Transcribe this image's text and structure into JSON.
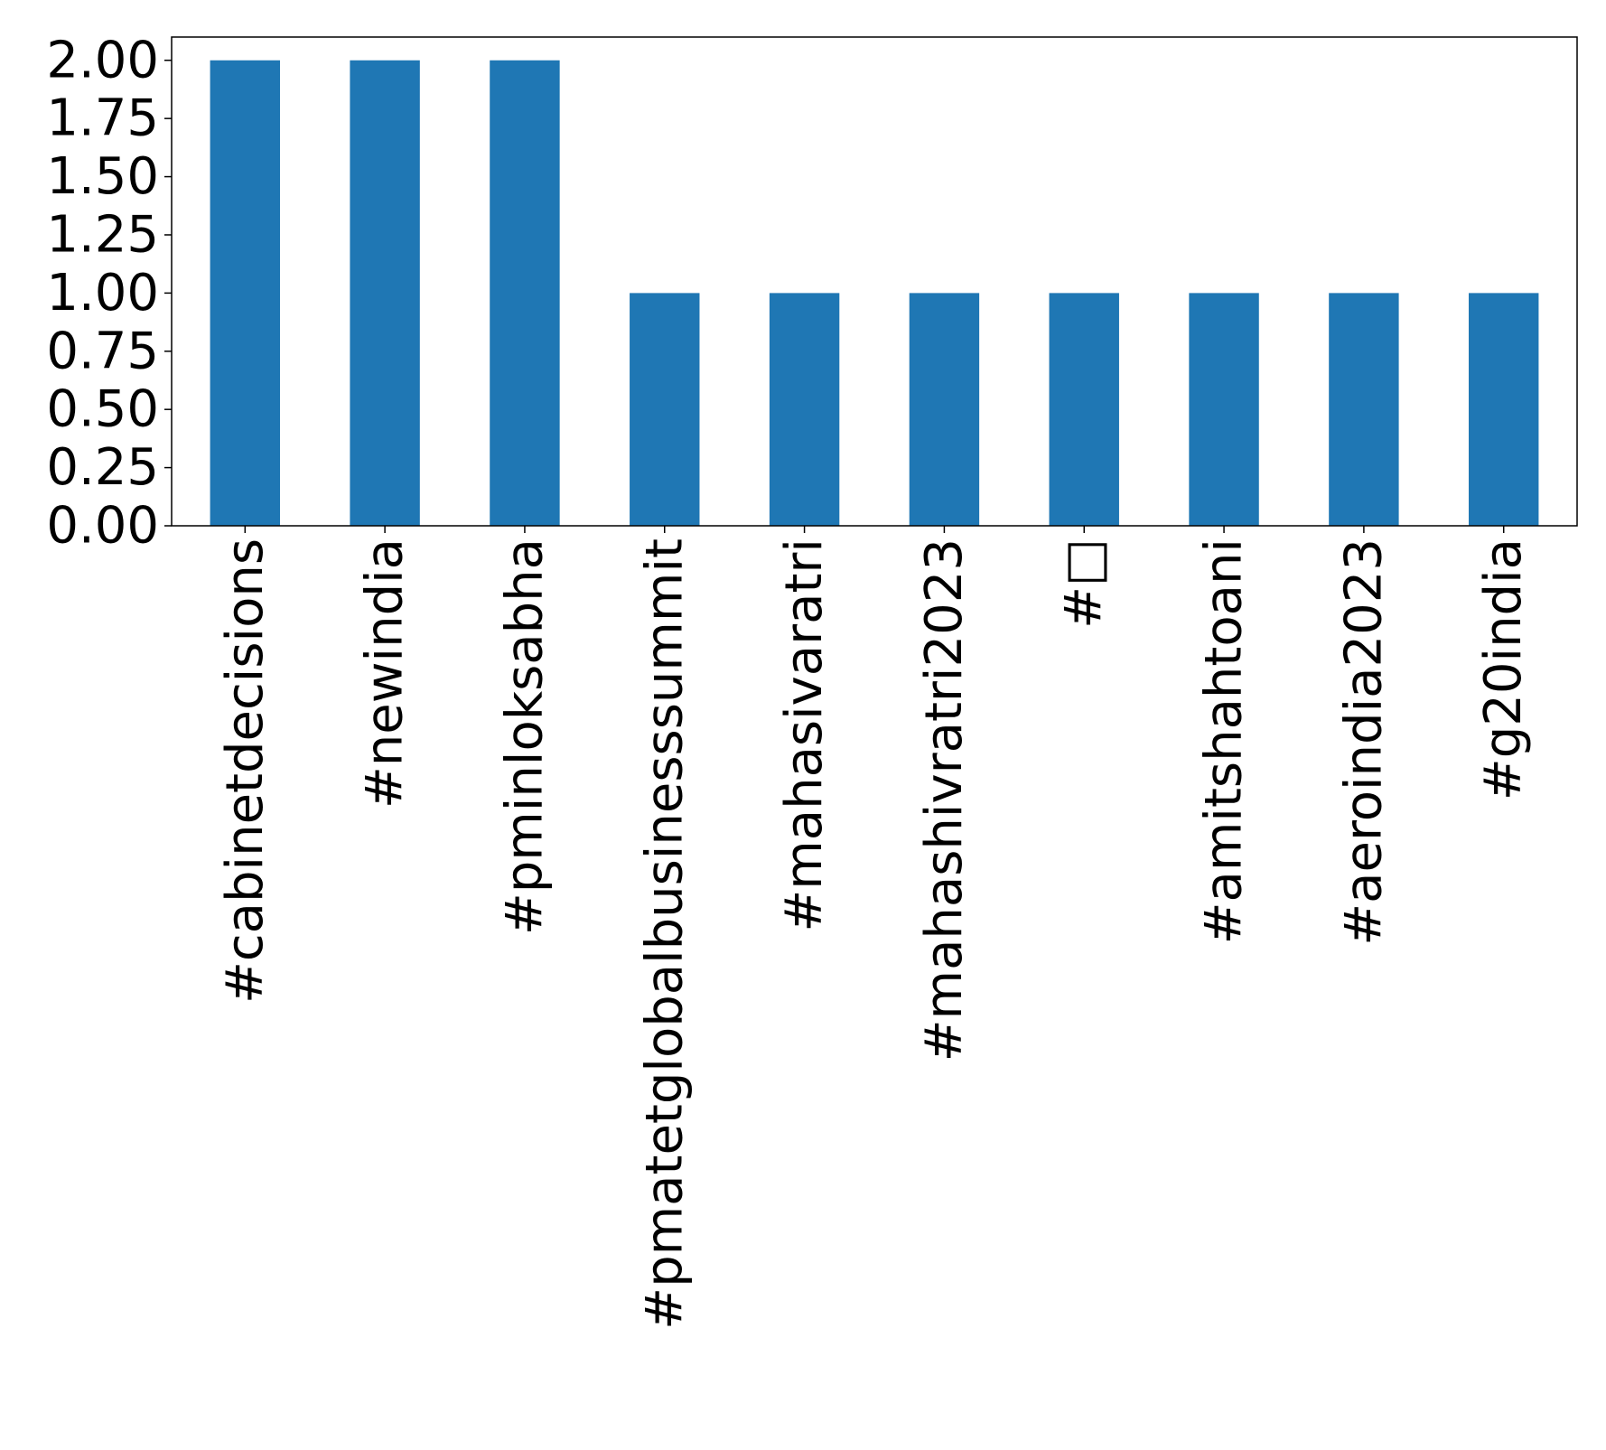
{
  "chart_data": {
    "type": "bar",
    "title": "",
    "xlabel": "",
    "ylabel": "",
    "categories": [
      "#cabinetdecisions",
      "#newindia",
      "#pminloksabha",
      "#pmatetglobalbusinesssummit",
      "#mahasivaratri",
      "#mahashivratri2023",
      "#□",
      "#amitshahtoani",
      "#aeroindia2023",
      "#g20india"
    ],
    "values": [
      2,
      2,
      2,
      1,
      1,
      1,
      1,
      1,
      1,
      1
    ],
    "ylim": [
      0,
      2.1
    ],
    "yticks": [
      "0.00",
      "0.25",
      "0.50",
      "0.75",
      "1.00",
      "1.25",
      "1.50",
      "1.75",
      "2.00"
    ],
    "ytick_values": [
      0,
      0.25,
      0.5,
      0.75,
      1.0,
      1.25,
      1.5,
      1.75,
      2.0
    ],
    "grid": false,
    "legend": "none",
    "bar_color": "#1f77b4"
  }
}
